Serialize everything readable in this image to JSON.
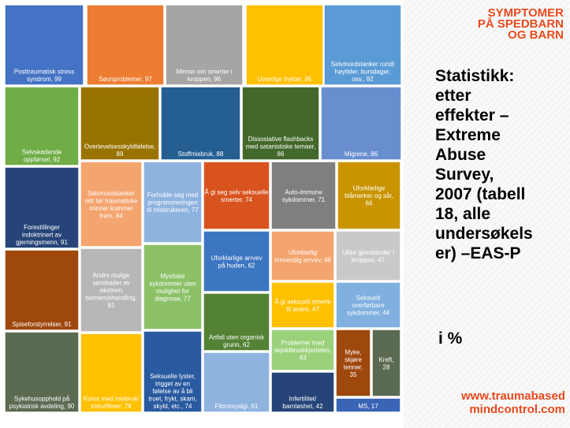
{
  "brand": {
    "title_lines": [
      "SYMPTOMER",
      "PÅ SPEDBARN",
      "OG BARN"
    ],
    "accent_color": "#e8491d",
    "url_lines": [
      "www.traumabased",
      "mindcontrol.com"
    ]
  },
  "side_title_lines": [
    "Statistikk:",
    "etter",
    "effekter –",
    "Extreme",
    "Abuse",
    "Survey,",
    "2007 (tabell",
    "18, alle",
    "undersøkels",
    "er) –EAS-P"
  ],
  "unit_label": "i %",
  "chart_data": {
    "type": "treemap",
    "unit": "%",
    "items": [
      {
        "label": "Posttraumatisk stress syndrom, 99",
        "lines": [
          "Posttraumatisk stress",
          "syndrom, 99"
        ],
        "value": 99,
        "color": "#4472c4"
      },
      {
        "label": "Søvnproblemer, 97",
        "lines": [
          "Søvnproblemer, 97"
        ],
        "value": 97,
        "color": "#ed7d31"
      },
      {
        "label": "Minner om smerter i kroppen, 96",
        "lines": [
          "Minner om smerter i",
          "kroppen, 96"
        ],
        "value": 96,
        "color": "#a5a5a5"
      },
      {
        "label": "Uvanlige frykter, 95",
        "lines": [
          "Uvanlige frykter, 95"
        ],
        "value": 95,
        "color": "#ffc000"
      },
      {
        "label": "Selvmordstanker rundt høytider, bursdager, osv., 92",
        "lines": [
          "Selvmordstanker rundt",
          "høytider, bursdager,",
          "osv., 92"
        ],
        "value": 92,
        "color": "#5b9bd5"
      },
      {
        "label": "Selvskadende oppførsel, 92",
        "lines": [
          "Selvskadende",
          "oppførsel, 92"
        ],
        "value": 92,
        "color": "#70ad47"
      },
      {
        "label": "Overlevelsesskyldfølelse, 89",
        "lines": [
          "Overlevelsesskyldfølelse,",
          "89"
        ],
        "value": 89,
        "color": "#997300"
      },
      {
        "label": "Stoffmisbruk, 88",
        "lines": [
          "Stoffmisbruk, 88"
        ],
        "value": 88,
        "color": "#255e91"
      },
      {
        "label": "Dissosiative flashbacks med satanistiske temaer, 86",
        "lines": [
          "Dissosiative flashbacks",
          "med satanistiske temaer,",
          "86"
        ],
        "value": 86,
        "color": "#43682b"
      },
      {
        "label": "Migrene, 86",
        "lines": [
          "Migrene, 86"
        ],
        "value": 86,
        "color": "#698ed0"
      },
      {
        "label": "Forestillinger indoktrinert av gjerningsmenn, 91",
        "lines": [
          "Forestillinger",
          "indoktrinert av",
          "gjerningsmenn, 91"
        ],
        "value": 91,
        "color": "#264478"
      },
      {
        "label": "Selvmordstanker rett før traumatiske minner kommer frem, 84",
        "lines": [
          "Selvmordstanker",
          "rett før traumatiske",
          "minner kommer",
          "frem, 84"
        ],
        "value": 84,
        "color": "#f4a46f"
      },
      {
        "label": "Forholde seg med programmeringen til misbrukeren, 77",
        "lines": [
          "Forholde seg med",
          "programmeringen",
          "til misbrukeren, 77"
        ],
        "value": 77,
        "color": "#8fb3df"
      },
      {
        "label": "Å gi seg selv seksuelle smerter, 74",
        "lines": [
          "Å gi seg selv seksuelle",
          "smerter, 74"
        ],
        "value": 74,
        "color": "#d9531e"
      },
      {
        "label": "Auto-immune sykdommer, 71",
        "lines": [
          "Auto-immune",
          "sykdommer, 71"
        ],
        "value": 71,
        "color": "#7f7f7f"
      },
      {
        "label": "Uforklarlige blåmerker og sår, 66",
        "lines": [
          "Uforklarlige",
          "blåmerker og sår,",
          "66"
        ],
        "value": 66,
        "color": "#c99400"
      },
      {
        "label": "Spiseforstyrrelser, 91",
        "lines": [
          "Spiseforstyrrelser, 91"
        ],
        "value": 91,
        "color": "#9e480e"
      },
      {
        "label": "Andre mulige senskader av ekstrem barnemishandling, 81",
        "lines": [
          "Andre mulige",
          "senskader av",
          "ekstrem",
          "barnemishandling,",
          "81"
        ],
        "value": 81,
        "color": "#b7b7b7"
      },
      {
        "label": "Mystiske sykdommer uten mulighet for diagnose, 77",
        "lines": [
          "Mystiske",
          "sykdommer uten",
          "mulighet for",
          "diagnose, 77"
        ],
        "value": 77,
        "color": "#8cc168"
      },
      {
        "label": "Uforklarlige arrvev på huden, 62",
        "lines": [
          "Uforklarlige arrvev",
          "på huden, 62"
        ],
        "value": 62,
        "color": "#3c76c2"
      },
      {
        "label": "Uforklarlig innvendig arrvev, 48",
        "lines": [
          "Uforklarlig",
          "innvendig arrvev, 48"
        ],
        "value": 48,
        "color": "#f4a46f"
      },
      {
        "label": "Ulike gjenstander i kroppen, 47",
        "lines": [
          "Ulike gjenstander i",
          "kroppen, 47"
        ],
        "value": 47,
        "color": "#c9c9c9"
      },
      {
        "label": "Sykehusopphold på psykiatrisk avdeling, 90",
        "lines": [
          "Sykehusopphold på",
          "psykiatrisk avdeling, 90"
        ],
        "value": 90,
        "color": "#5b6b52"
      },
      {
        "label": "Kunst med misbruk/torturfilmer, 78",
        "lines": [
          "Kunst med misbruk/",
          "torturfilmer, 78"
        ],
        "value": 78,
        "color": "#ffc000"
      },
      {
        "label": "Seksuelle lyster, trigget av en følelse av å bli truet, frykt, skam, skyld, etc., 74",
        "lines": [
          "Seksuelle lyster,",
          "trigget av en",
          "følelse av å bli",
          "truet, frykt, skam,",
          "skyld, etc., 74"
        ],
        "value": 74,
        "color": "#2a5aa0"
      },
      {
        "label": "Anfall uten organisk grunn, 62",
        "lines": [
          "Anfall uten organisk",
          "grunn, 62"
        ],
        "value": 62,
        "color": "#548235"
      },
      {
        "label": "Å gi seksuell smerte til andre, 47",
        "lines": [
          "Å gi seksuell smerte",
          "til andre, 47"
        ],
        "value": 47,
        "color": "#ffc000"
      },
      {
        "label": "Seksuelt overførbare sykdommer, 44",
        "lines": [
          "Seksuelt",
          "overførbare",
          "sykdommer, 44"
        ],
        "value": 44,
        "color": "#7fb0e0"
      },
      {
        "label": "Fibromyalgi, 61",
        "lines": [
          "Fibromyalgi, 61"
        ],
        "value": 61,
        "color": "#8fb3df"
      },
      {
        "label": "Problemer med skjoldbruskkjertelen, 43",
        "lines": [
          "Problemer med",
          "skjoldbruskkjertelen,",
          "43"
        ],
        "value": 43,
        "color": "#9bd17a"
      },
      {
        "label": "Infertilitet/barnløshet, 42",
        "lines": [
          "Infertilitet/",
          "barnløshet, 42"
        ],
        "value": 42,
        "color": "#264478"
      },
      {
        "label": "Myke, skjøre tenner, 35",
        "lines": [
          "Myke,",
          "skjøre",
          "tenner,",
          "35"
        ],
        "value": 35,
        "color": "#9e480e"
      },
      {
        "label": "Kreft, 28",
        "lines": [
          "Kreft,",
          "28"
        ],
        "value": 28,
        "color": "#5b6b52"
      },
      {
        "label": "MS, 17",
        "lines": [
          "MS, 17"
        ],
        "value": 17,
        "color": "#3a64b5"
      }
    ]
  }
}
